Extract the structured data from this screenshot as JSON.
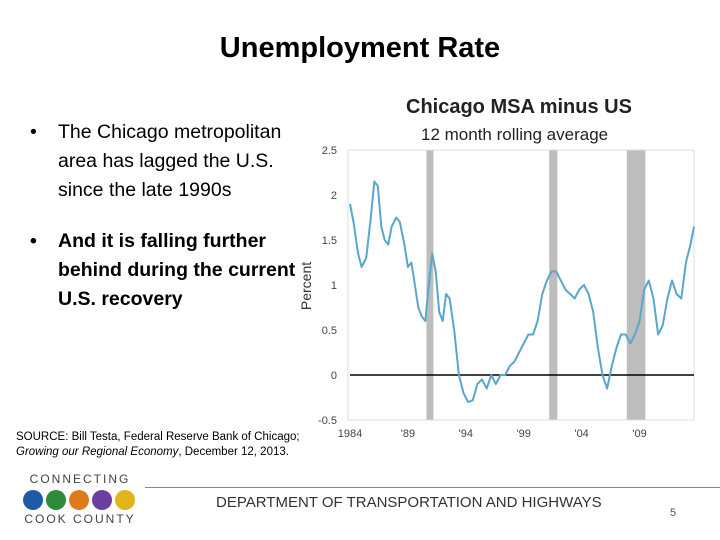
{
  "slide": {
    "title": "Unemployment Rate",
    "bullets": [
      "The Chicago metropolitan area has lagged the U.S. since the late 1990s",
      "And it is falling further behind during the current U.S. recovery"
    ],
    "source_prefix": "SOURCE: Bill Testa, Federal Reserve Bank of Chicago;",
    "source_italic": "Growing our Regional Economy",
    "source_suffix": ", December 12, 2013.",
    "footer": "DEPARTMENT OF TRANSPORTATION AND HIGHWAYS",
    "page_number": "5",
    "logo_line1": "CONNECTING",
    "logo_line2": "COOK COUNTY"
  },
  "chart_data": {
    "type": "line",
    "title": "Chicago MSA minus US",
    "subtitle": "12 month rolling average",
    "xlabel": "",
    "ylabel": "Percent",
    "ylim": [
      -0.5,
      2.5
    ],
    "xlim": [
      1984,
      2013.7
    ],
    "yticks": [
      2.5,
      2,
      1.5,
      1,
      0.5,
      0,
      -0.5
    ],
    "ytick_labels": [
      "2.5",
      "2",
      "1.5",
      "1",
      "0.5",
      "0",
      "-0.5"
    ],
    "xticks": [
      1984,
      1989,
      1994,
      1999,
      2004,
      2009
    ],
    "xtick_labels": [
      "1984",
      "'89",
      "'94",
      "'99",
      "'04",
      "'09"
    ],
    "recessions": [
      [
        1990.6,
        1991.2
      ],
      [
        2001.2,
        2001.9
      ],
      [
        2007.9,
        2009.5
      ]
    ],
    "series": [
      {
        "name": "Chicago MSA minus US",
        "color": "#5aa6cc",
        "x": [
          1984,
          1984.3,
          1984.7,
          1985,
          1985.4,
          1985.8,
          1986.1,
          1986.4,
          1986.7,
          1987,
          1987.3,
          1987.6,
          1988,
          1988.3,
          1988.7,
          1989,
          1989.3,
          1989.6,
          1989.9,
          1990.2,
          1990.5,
          1990.8,
          1991.1,
          1991.4,
          1991.7,
          1992,
          1992.3,
          1992.6,
          1993,
          1993.4,
          1993.8,
          1994.2,
          1994.6,
          1995,
          1995.4,
          1995.8,
          1996.2,
          1996.6,
          1997,
          1997.4,
          1997.8,
          1998.2,
          1998.6,
          1999,
          1999.4,
          1999.8,
          2000.2,
          2000.6,
          2001,
          2001.4,
          2001.8,
          2002.2,
          2002.6,
          2003,
          2003.4,
          2003.8,
          2004.2,
          2004.6,
          2005,
          2005.4,
          2005.8,
          2006.2,
          2006.6,
          2007,
          2007.4,
          2007.8,
          2008.2,
          2008.6,
          2009,
          2009.4,
          2009.8,
          2010.2,
          2010.6,
          2011,
          2011.4,
          2011.8,
          2012.2,
          2012.6,
          2013,
          2013.4,
          2013.7
        ],
        "values": [
          1.9,
          1.7,
          1.35,
          1.2,
          1.3,
          1.75,
          2.15,
          2.1,
          1.65,
          1.5,
          1.45,
          1.65,
          1.75,
          1.7,
          1.45,
          1.2,
          1.25,
          1.0,
          0.75,
          0.65,
          0.6,
          1.0,
          1.35,
          1.15,
          0.7,
          0.6,
          0.9,
          0.85,
          0.5,
          0.0,
          -0.2,
          -0.3,
          -0.28,
          -0.1,
          -0.05,
          -0.15,
          0.0,
          -0.1,
          0.0,
          0.0,
          0.1,
          0.15,
          0.25,
          0.35,
          0.45,
          0.45,
          0.6,
          0.9,
          1.05,
          1.15,
          1.15,
          1.05,
          0.95,
          0.9,
          0.85,
          0.95,
          1.0,
          0.9,
          0.7,
          0.3,
          0.0,
          -0.15,
          0.1,
          0.3,
          0.45,
          0.45,
          0.35,
          0.45,
          0.6,
          0.95,
          1.05,
          0.85,
          0.45,
          0.55,
          0.85,
          1.05,
          0.9,
          0.85,
          1.25,
          1.45,
          1.65
        ]
      }
    ]
  }
}
